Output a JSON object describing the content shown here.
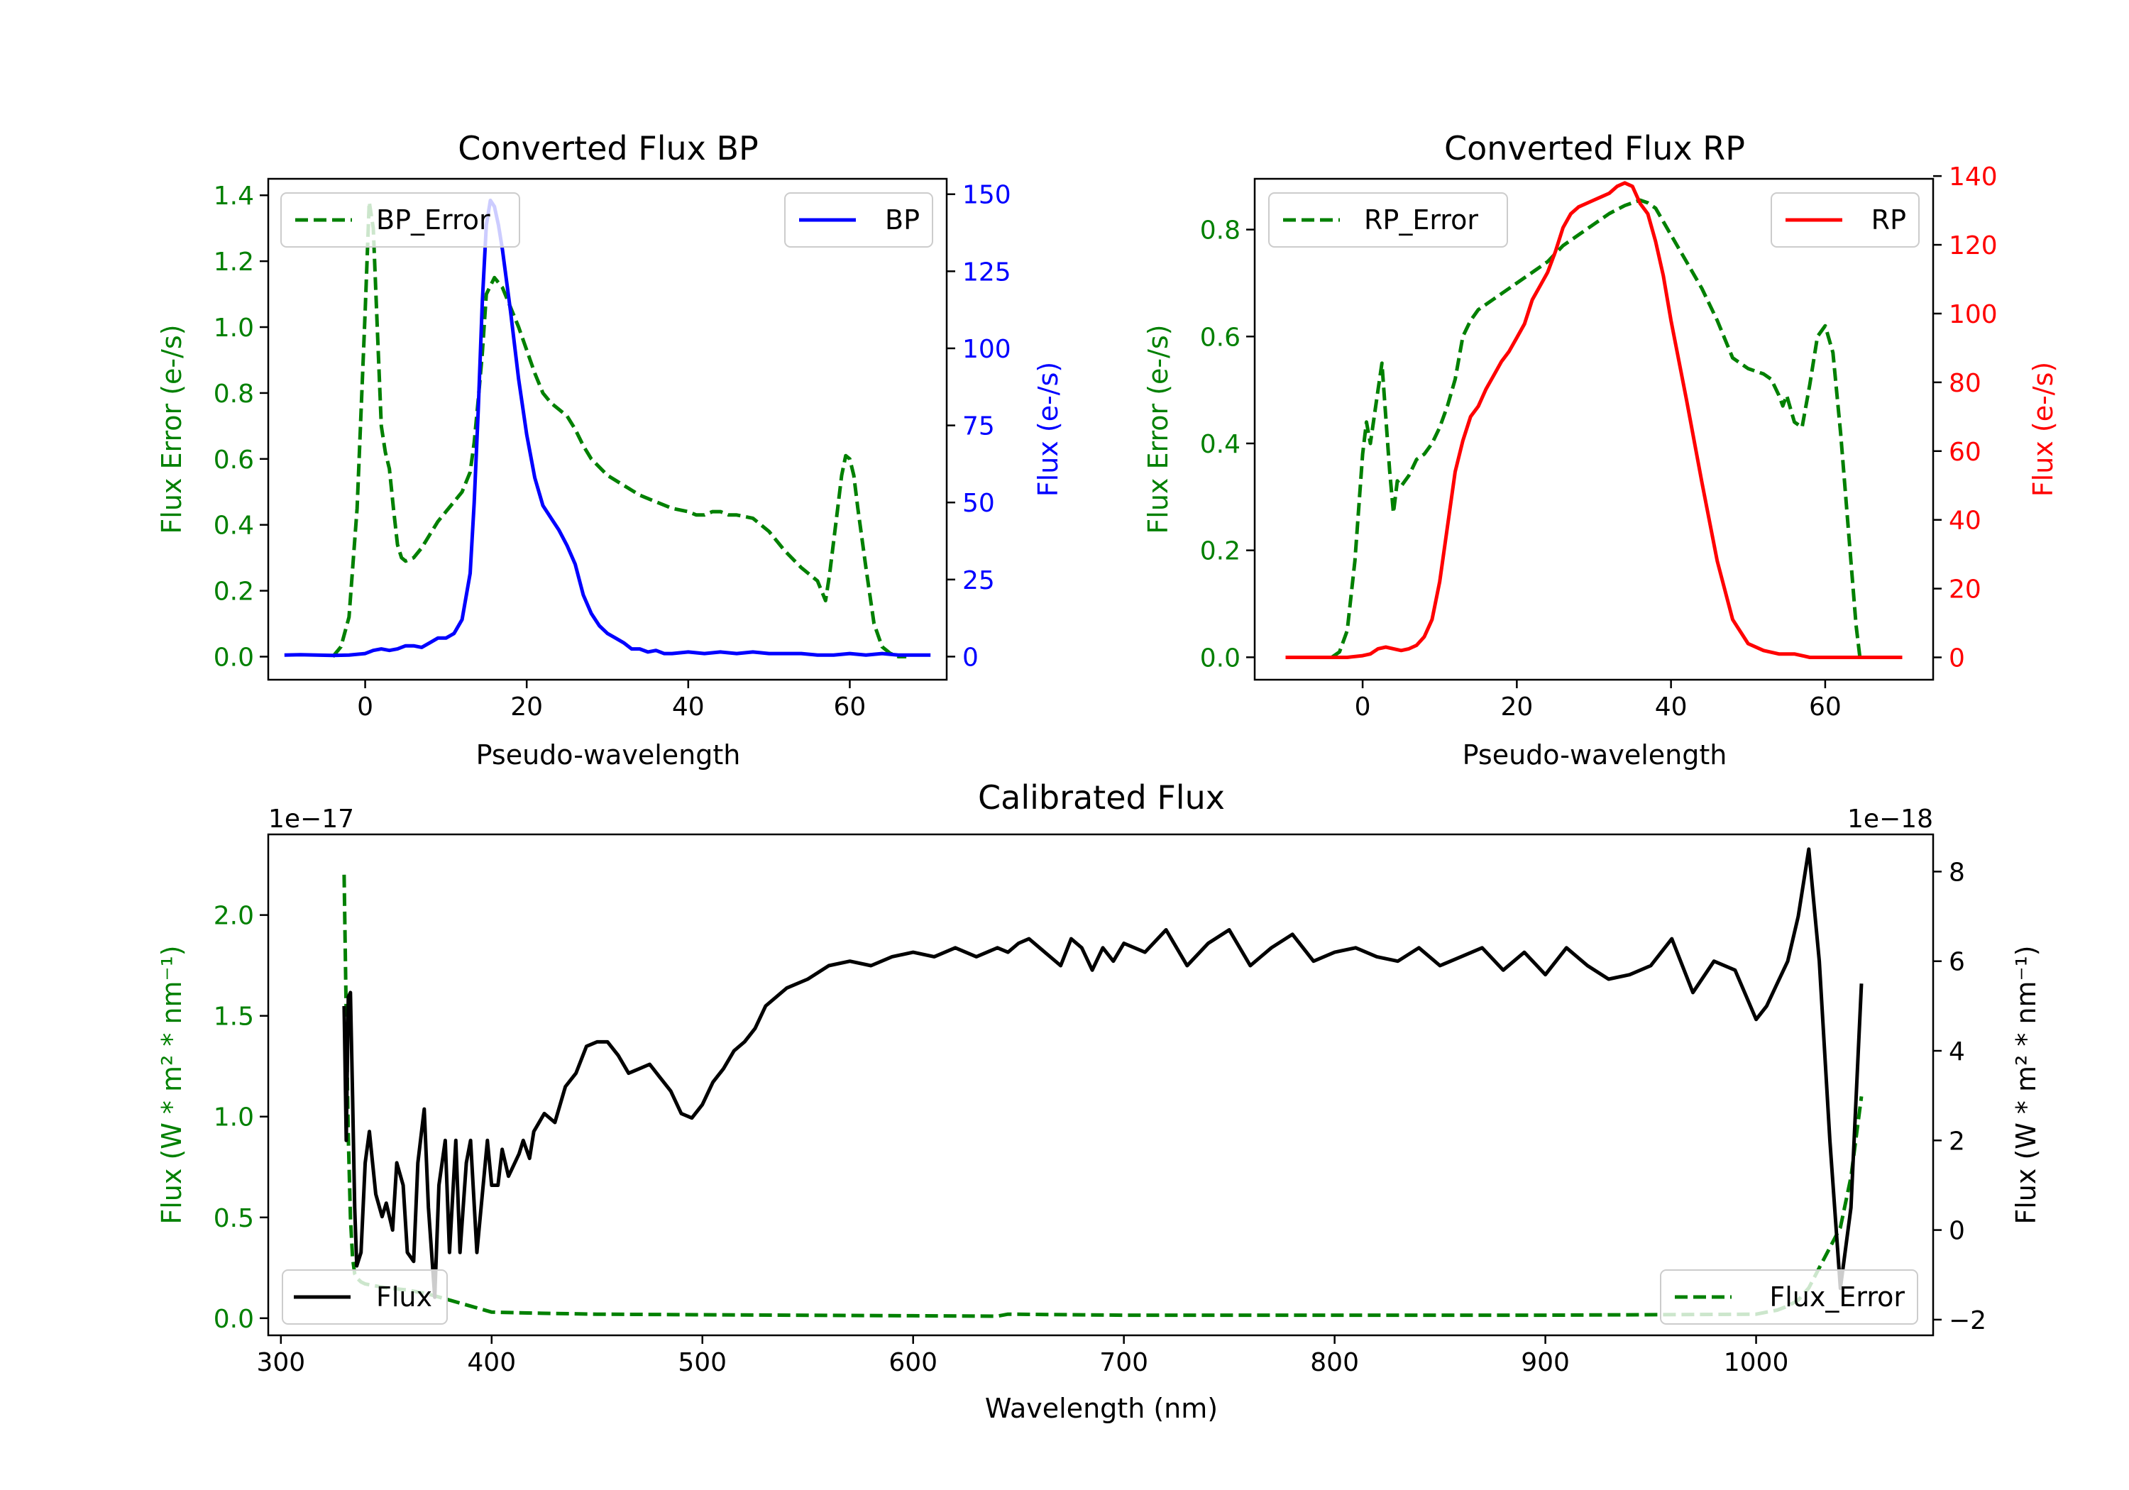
{
  "colors": {
    "error": "#008000",
    "bp": "#0000ff",
    "rp": "#ff0000",
    "flux": "#000000",
    "axis": "#000000"
  },
  "chart_data": [
    {
      "type": "line",
      "title": "Converted Flux BP",
      "xlabel": "Pseudo-wavelength",
      "ylabel_left": "Flux Error (e-/s)",
      "ylabel_right": "Flux (e-/s)",
      "xlim": [
        -12,
        72
      ],
      "ylim_left": [
        -0.07,
        1.45
      ],
      "ylim_right": [
        -7.5,
        155
      ],
      "xticks": [
        0,
        20,
        40,
        60
      ],
      "xtick_labels": [
        "0",
        "20",
        "40",
        "60"
      ],
      "yticks_left": [
        0.0,
        0.2,
        0.4,
        0.6,
        0.8,
        1.0,
        1.2,
        1.4
      ],
      "ytick_labels_left": [
        "0.0",
        "0.2",
        "0.4",
        "0.6",
        "0.8",
        "1.0",
        "1.2",
        "1.4"
      ],
      "yticks_right": [
        0,
        25,
        50,
        75,
        100,
        125,
        150
      ],
      "ytick_labels_right": [
        "0",
        "25",
        "50",
        "75",
        "100",
        "125",
        "150"
      ],
      "legend_left": "BP_Error",
      "legend_right": "BP",
      "series": [
        {
          "name": "BP_Error",
          "axis": "left",
          "style": "dashed",
          "color_key": "error",
          "x": [
            -4,
            -3,
            -2,
            -1,
            0,
            0.5,
            1,
            1.5,
            2,
            2.5,
            3,
            3.5,
            4,
            4.5,
            5,
            6,
            7,
            8,
            9,
            10,
            11,
            12,
            13,
            13.5,
            14,
            14.5,
            15,
            16,
            17,
            18,
            19,
            20,
            21,
            22,
            23,
            24,
            25,
            26,
            27,
            28,
            30,
            32,
            34,
            36,
            38,
            40,
            41,
            42,
            43,
            44,
            45,
            46,
            48,
            50,
            52,
            54,
            55,
            56,
            56.5,
            57,
            57.5,
            58,
            58.5,
            59,
            59.5,
            60,
            60.5,
            61,
            62,
            63,
            64,
            65,
            66,
            67
          ],
          "y": [
            0.0,
            0.03,
            0.12,
            0.45,
            1.05,
            1.38,
            1.3,
            1.0,
            0.7,
            0.62,
            0.57,
            0.45,
            0.34,
            0.3,
            0.29,
            0.3,
            0.33,
            0.37,
            0.41,
            0.44,
            0.47,
            0.5,
            0.56,
            0.65,
            0.78,
            0.92,
            1.1,
            1.15,
            1.12,
            1.06,
            1.0,
            0.93,
            0.86,
            0.8,
            0.77,
            0.75,
            0.73,
            0.69,
            0.64,
            0.6,
            0.55,
            0.52,
            0.49,
            0.47,
            0.45,
            0.44,
            0.43,
            0.43,
            0.44,
            0.44,
            0.43,
            0.43,
            0.42,
            0.38,
            0.32,
            0.27,
            0.25,
            0.23,
            0.2,
            0.17,
            0.25,
            0.35,
            0.45,
            0.55,
            0.61,
            0.6,
            0.55,
            0.45,
            0.27,
            0.1,
            0.03,
            0.01,
            0.0,
            0.0
          ]
        },
        {
          "name": "BP",
          "axis": "right",
          "style": "solid",
          "color_key": "bp",
          "x": [
            -10,
            -8,
            -6,
            -4,
            -2,
            0,
            1,
            2,
            3,
            4,
            5,
            6,
            7,
            8,
            9,
            10,
            11,
            12,
            13,
            13.5,
            14,
            14.5,
            15,
            15.5,
            16,
            16.5,
            17,
            18,
            19,
            20,
            21,
            22,
            23,
            24,
            25,
            26,
            27,
            28,
            29,
            30,
            31,
            32,
            33,
            34,
            35,
            36,
            37,
            38,
            40,
            42,
            44,
            46,
            48,
            50,
            52,
            54,
            56,
            58,
            60,
            62,
            64,
            66,
            68,
            70
          ],
          "y": [
            0.5,
            0.6,
            0.5,
            0.4,
            0.5,
            1,
            2,
            2.5,
            2,
            2.5,
            3.5,
            3.5,
            3,
            4.5,
            6,
            6,
            7.5,
            12,
            27,
            50,
            80,
            115,
            140,
            148,
            146,
            140,
            132,
            112,
            90,
            72,
            58,
            49,
            45,
            41,
            36,
            30,
            20,
            14,
            10,
            7.5,
            6,
            4.5,
            2.5,
            2.5,
            1.5,
            2,
            1,
            1,
            1.5,
            1,
            1.5,
            1,
            1.5,
            1,
            1,
            1,
            0.5,
            0.5,
            1,
            0.5,
            1,
            0.5,
            0.5,
            0.5
          ]
        }
      ]
    },
    {
      "type": "line",
      "title": "Converted Flux RP",
      "xlabel": "Pseudo-wavelength",
      "ylabel_left": "Flux Error (e-/s)",
      "ylabel_right": "Flux (e-/s)",
      "xlim": [
        -14,
        74
      ],
      "ylim_left": [
        -0.042,
        0.895
      ],
      "ylim_right": [
        -6.5,
        139.2
      ],
      "xticks": [
        0,
        20,
        40,
        60
      ],
      "xtick_labels": [
        "0",
        "20",
        "40",
        "60"
      ],
      "yticks_left": [
        0.0,
        0.2,
        0.4,
        0.6,
        0.8
      ],
      "ytick_labels_left": [
        "0.0",
        "0.2",
        "0.4",
        "0.6",
        "0.8"
      ],
      "yticks_right": [
        0,
        20,
        40,
        60,
        80,
        100,
        120,
        140
      ],
      "ytick_labels_right": [
        "0",
        "20",
        "40",
        "60",
        "80",
        "100",
        "120",
        "140"
      ],
      "legend_left": "RP_Error",
      "legend_right": "RP",
      "series": [
        {
          "name": "RP_Error",
          "axis": "left",
          "style": "dashed",
          "color_key": "error",
          "x": [
            -4,
            -3,
            -2,
            -1,
            0,
            0.5,
            1,
            1.5,
            2,
            2.5,
            3,
            3.5,
            4,
            4.5,
            5,
            6,
            7,
            8,
            9,
            10,
            11,
            12,
            13,
            14,
            15,
            16,
            17,
            18,
            20,
            22,
            24,
            26,
            28,
            30,
            32,
            34,
            35,
            36,
            37,
            38,
            40,
            42,
            44,
            46,
            48,
            50,
            52,
            53,
            54,
            54.5,
            55,
            56,
            57,
            58,
            59,
            60,
            61,
            62,
            63,
            64,
            64.5
          ],
          "y": [
            0.0,
            0.01,
            0.05,
            0.18,
            0.38,
            0.44,
            0.4,
            0.45,
            0.5,
            0.55,
            0.45,
            0.35,
            0.27,
            0.33,
            0.32,
            0.34,
            0.37,
            0.38,
            0.4,
            0.43,
            0.47,
            0.52,
            0.6,
            0.63,
            0.65,
            0.66,
            0.67,
            0.68,
            0.7,
            0.72,
            0.74,
            0.77,
            0.79,
            0.81,
            0.83,
            0.845,
            0.85,
            0.855,
            0.85,
            0.84,
            0.79,
            0.74,
            0.69,
            0.63,
            0.56,
            0.54,
            0.53,
            0.52,
            0.49,
            0.47,
            0.49,
            0.44,
            0.43,
            0.51,
            0.6,
            0.62,
            0.57,
            0.42,
            0.24,
            0.06,
            0.0
          ]
        },
        {
          "name": "RP",
          "axis": "right",
          "style": "solid",
          "color_key": "rp",
          "x": [
            -10,
            -8,
            -6,
            -4,
            -2,
            0,
            1,
            2,
            3,
            4,
            5,
            6,
            7,
            8,
            9,
            10,
            11,
            12,
            13,
            14,
            15,
            16,
            17,
            18,
            19,
            20,
            21,
            22,
            23,
            24,
            25,
            26,
            27,
            28,
            29,
            30,
            31,
            32,
            33,
            34,
            35,
            36,
            37,
            38,
            39,
            40,
            42,
            44,
            46,
            48,
            50,
            52,
            54,
            56,
            58,
            60,
            62,
            64,
            66,
            68,
            70
          ],
          "y": [
            0,
            0,
            0,
            0,
            0,
            0.5,
            1,
            2.5,
            3,
            2.5,
            2,
            2.5,
            3.5,
            6,
            11,
            22,
            38,
            54,
            63,
            70,
            73,
            78,
            82,
            86,
            89,
            93,
            97,
            104,
            108,
            112,
            118,
            125,
            129,
            131,
            132,
            133,
            134,
            135,
            137,
            138,
            137,
            132,
            129,
            121,
            111,
            98,
            75,
            51,
            28,
            11,
            4,
            2,
            1,
            1,
            0,
            0,
            0,
            0,
            0,
            0,
            0
          ]
        }
      ]
    },
    {
      "type": "line",
      "title": "Calibrated Flux",
      "xlabel": "Wavelength (nm)",
      "ylabel_left": "Flux (W * m² * nm⁻¹)",
      "ylabel_right": "Flux (W * m² * nm⁻¹)",
      "offset_left": "1e−17",
      "offset_right": "1e−18",
      "xlim": [
        294,
        1084
      ],
      "ylim_left": [
        -0.085,
        2.4
      ],
      "ylim_right": [
        -2.35,
        8.83
      ],
      "xticks": [
        300,
        400,
        500,
        600,
        700,
        800,
        900,
        1000
      ],
      "xtick_labels": [
        "300",
        "400",
        "500",
        "600",
        "700",
        "800",
        "900",
        "1000"
      ],
      "yticks_left": [
        0.0,
        0.5,
        1.0,
        1.5,
        2.0
      ],
      "ytick_labels_left": [
        "0.0",
        "0.5",
        "1.0",
        "1.5",
        "2.0"
      ],
      "yticks_right": [
        -2,
        0,
        2,
        4,
        6,
        8
      ],
      "ytick_labels_right": [
        "−2",
        "0",
        "2",
        "4",
        "6",
        "8"
      ],
      "legend_left": "Flux",
      "legend_right": "Flux_Error",
      "series": [
        {
          "name": "Flux_Error",
          "axis": "left",
          "style": "dashed",
          "color_key": "error",
          "x": [
            330,
            331,
            332,
            333,
            334,
            335,
            336,
            338,
            340,
            345,
            350,
            360,
            370,
            380,
            390,
            400,
            420,
            450,
            500,
            600,
            640,
            645,
            700,
            800,
            900,
            1000,
            1005,
            1010,
            1015,
            1020,
            1025,
            1030,
            1035,
            1040,
            1045,
            1050
          ],
          "y": [
            2.2,
            1.5,
            0.9,
            0.5,
            0.3,
            0.22,
            0.2,
            0.18,
            0.17,
            0.16,
            0.15,
            0.14,
            0.12,
            0.09,
            0.06,
            0.03,
            0.025,
            0.02,
            0.017,
            0.012,
            0.01,
            0.02,
            0.015,
            0.015,
            0.015,
            0.02,
            0.03,
            0.04,
            0.06,
            0.09,
            0.15,
            0.25,
            0.35,
            0.45,
            0.7,
            1.1
          ]
        },
        {
          "name": "Flux",
          "axis": "right",
          "style": "solid",
          "color_key": "flux",
          "x": [
            330,
            331,
            332,
            333,
            334,
            335,
            336,
            338,
            340,
            342,
            345,
            348,
            350,
            353,
            355,
            358,
            360,
            363,
            365,
            368,
            370,
            373,
            375,
            378,
            380,
            383,
            385,
            388,
            390,
            393,
            395,
            398,
            400,
            403,
            405,
            408,
            410,
            413,
            415,
            418,
            420,
            425,
            430,
            435,
            440,
            445,
            450,
            455,
            460,
            465,
            470,
            475,
            480,
            485,
            490,
            495,
            500,
            505,
            510,
            515,
            520,
            525,
            530,
            540,
            550,
            560,
            570,
            580,
            590,
            600,
            610,
            620,
            630,
            640,
            645,
            650,
            655,
            660,
            665,
            670,
            675,
            680,
            685,
            690,
            695,
            700,
            710,
            720,
            730,
            740,
            750,
            760,
            770,
            780,
            790,
            800,
            810,
            820,
            830,
            840,
            850,
            860,
            870,
            880,
            890,
            900,
            910,
            920,
            930,
            940,
            950,
            960,
            970,
            980,
            990,
            1000,
            1005,
            1010,
            1015,
            1020,
            1025,
            1030,
            1035,
            1040,
            1045,
            1050
          ],
          "y": [
            5,
            2,
            5.2,
            5.3,
            3,
            0.5,
            -0.8,
            -0.5,
            1.5,
            2.2,
            0.8,
            0.3,
            0.6,
            0,
            1.5,
            1,
            -0.5,
            -0.7,
            1.5,
            2.7,
            0.5,
            -1.5,
            1,
            2,
            -0.5,
            2,
            -0.5,
            1.5,
            2,
            -0.5,
            0.5,
            2,
            1,
            1,
            1.8,
            1.2,
            1.4,
            1.7,
            2,
            1.6,
            2.2,
            2.6,
            2.4,
            3.2,
            3.5,
            4.1,
            4.2,
            4.2,
            3.9,
            3.5,
            3.6,
            3.7,
            3.4,
            3.1,
            2.6,
            2.5,
            2.8,
            3.3,
            3.6,
            4,
            4.2,
            4.5,
            5,
            5.4,
            5.6,
            5.9,
            6,
            5.9,
            6.1,
            6.2,
            6.1,
            6.3,
            6.1,
            6.3,
            6.2,
            6.4,
            6.5,
            6.3,
            6.1,
            5.9,
            6.5,
            6.3,
            5.8,
            6.3,
            6,
            6.4,
            6.2,
            6.7,
            5.9,
            6.4,
            6.7,
            5.9,
            6.3,
            6.6,
            6,
            6.2,
            6.3,
            6.1,
            6,
            6.3,
            5.9,
            6.1,
            6.3,
            5.8,
            6.2,
            5.7,
            6.3,
            5.9,
            5.6,
            5.7,
            5.9,
            6.5,
            5.3,
            6,
            5.8,
            4.7,
            5,
            5.5,
            6,
            7,
            8.5,
            6,
            2,
            -1.3,
            0.5,
            5.5
          ]
        }
      ]
    }
  ]
}
